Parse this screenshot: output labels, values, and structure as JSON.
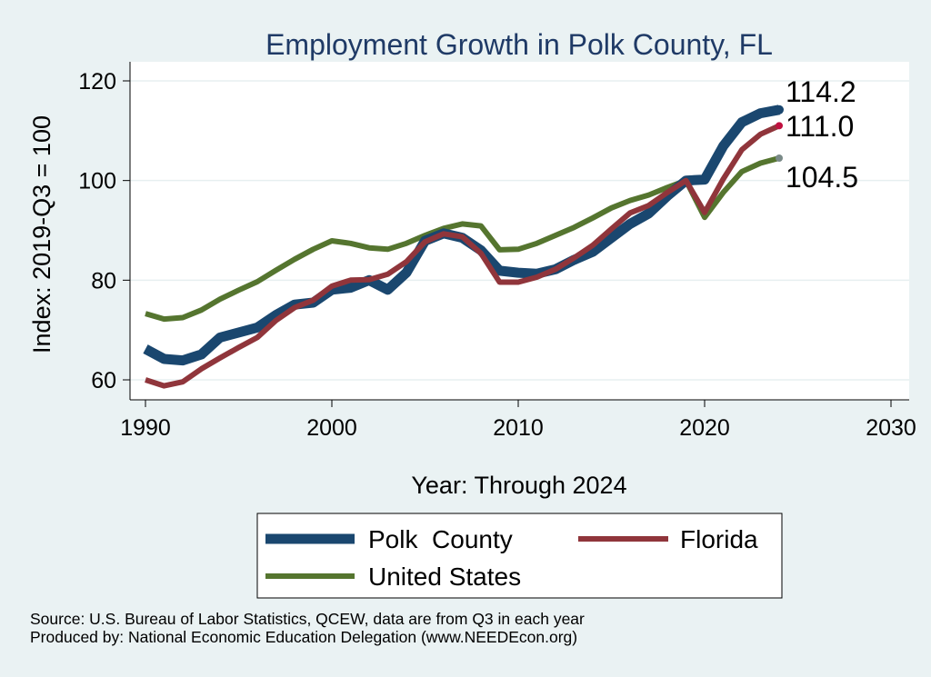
{
  "chart_data": {
    "type": "line",
    "title": "Employment Growth in Polk County, FL",
    "xlabel": "Year: Through 2024",
    "ylabel": "Index: 2019-Q3 = 100",
    "xlim": [
      1990,
      2030
    ],
    "ylim": [
      57,
      122
    ],
    "x_ticks": [
      1990,
      2000,
      2010,
      2020,
      2030
    ],
    "y_ticks": [
      60,
      80,
      100,
      120
    ],
    "grid": true,
    "legend_position": "bottom",
    "x": [
      1990,
      1991,
      1992,
      1993,
      1994,
      1995,
      1996,
      1997,
      1998,
      1999,
      2000,
      2001,
      2002,
      2003,
      2004,
      2005,
      2006,
      2007,
      2008,
      2009,
      2010,
      2011,
      2012,
      2013,
      2014,
      2015,
      2016,
      2017,
      2018,
      2019,
      2020,
      2021,
      2022,
      2023,
      2024
    ],
    "series": [
      {
        "name": "Polk  County",
        "color": "#1a476f",
        "values": [
          66.2,
          64.2,
          63.9,
          65.1,
          68.5,
          69.5,
          70.5,
          73.0,
          75.1,
          75.5,
          78.1,
          78.5,
          80.0,
          78.1,
          81.5,
          87.9,
          89.4,
          88.5,
          86.0,
          81.9,
          81.5,
          81.3,
          82.2,
          84.1,
          85.7,
          88.5,
          91.3,
          93.4,
          96.9,
          100.0,
          100.2,
          106.9,
          111.7,
          113.5,
          114.2
        ],
        "end_label": "114.2",
        "marker_color": "#1a476f"
      },
      {
        "name": "Florida",
        "color": "#90353b",
        "values": [
          60.0,
          58.8,
          59.6,
          62.2,
          64.4,
          66.5,
          68.5,
          71.9,
          74.5,
          76.0,
          78.8,
          80.0,
          80.1,
          81.2,
          83.7,
          87.7,
          89.3,
          88.7,
          85.4,
          79.6,
          79.6,
          80.6,
          82.2,
          84.5,
          87.0,
          90.3,
          93.5,
          95.0,
          97.6,
          100.0,
          93.6,
          100.3,
          106.2,
          109.3,
          111.0
        ],
        "end_label": "111.0",
        "marker_color": "#c0103f"
      },
      {
        "name": "United States",
        "color": "#55752f",
        "values": [
          73.3,
          72.2,
          72.5,
          74.0,
          76.2,
          78.0,
          79.7,
          82.0,
          84.2,
          86.2,
          87.9,
          87.4,
          86.5,
          86.2,
          87.4,
          89.0,
          90.4,
          91.3,
          90.9,
          86.1,
          86.2,
          87.4,
          89.0,
          90.6,
          92.5,
          94.5,
          96.0,
          97.1,
          98.6,
          100.0,
          92.6,
          97.6,
          101.8,
          103.5,
          104.5
        ],
        "end_label": "104.5",
        "marker_color": "#7a8a88"
      }
    ]
  },
  "footer": {
    "source": "Source: U.S. Bureau of Labor Statistics, QCEW, data are from Q3 in each year",
    "produced_by": "Produced by: National Economic Education Delegation (www.NEEDEcon.org)"
  }
}
